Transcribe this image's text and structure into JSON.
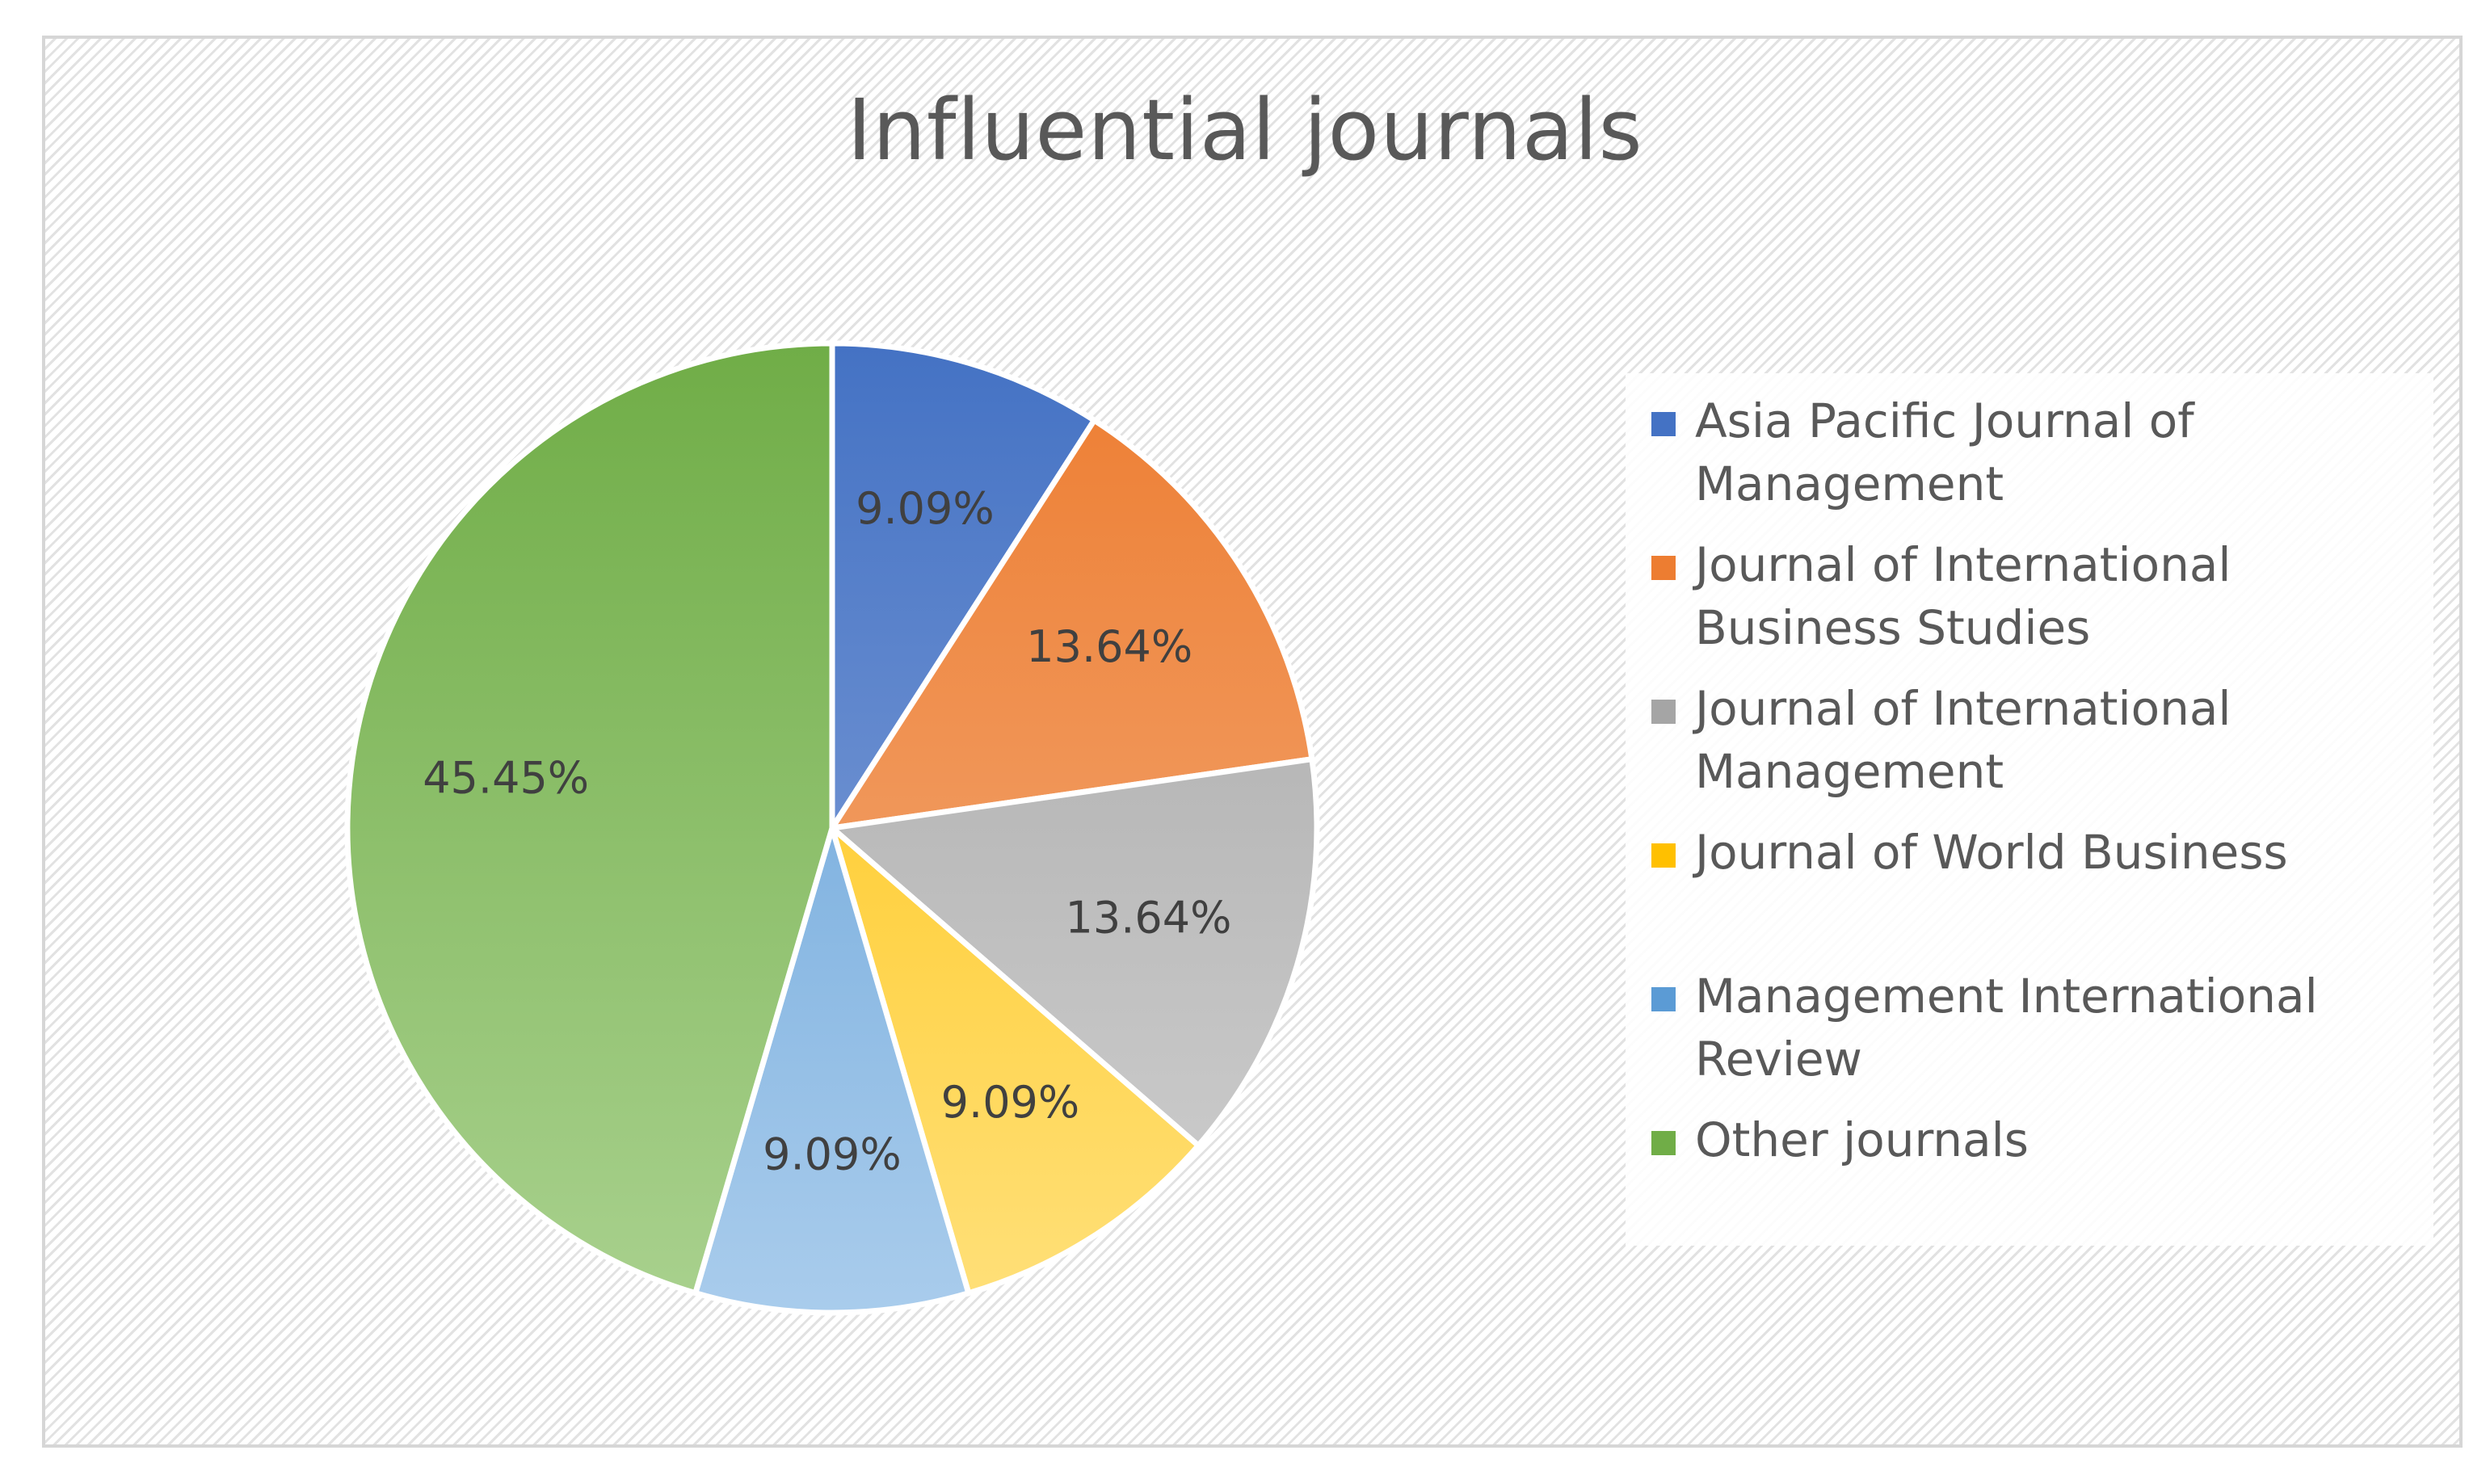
{
  "chart_data": {
    "type": "pie",
    "title": "Influential journals",
    "legend_position": "right",
    "slices": [
      {
        "name": "Asia Pacific Journal of Management",
        "value": 9.09,
        "label": "9.09%",
        "color": "#4472C4",
        "color_light": "#8FAADC"
      },
      {
        "name": "Journal of International Business Studies",
        "value": 13.64,
        "label": "13.64%",
        "color": "#ED7D31",
        "color_light": "#F4B183"
      },
      {
        "name": "Journal of International Management",
        "value": 13.64,
        "label": "13.64%",
        "color": "#A5A5A5",
        "color_light": "#D0D0D0"
      },
      {
        "name": "Journal of World Business",
        "value": 9.09,
        "label": "9.09%",
        "color": "#FFC000",
        "color_light": "#FFE07A"
      },
      {
        "name": "Management International Review",
        "value": 9.09,
        "label": "9.09%",
        "color": "#5B9BD5",
        "color_light": "#A9CCEC"
      },
      {
        "name": "Other journals",
        "value": 45.45,
        "label": "45.45%",
        "color": "#70AD47",
        "color_light": "#A9D18E"
      }
    ]
  },
  "legend": {
    "items": [
      {
        "label": "Asia Pacific Journal of Management"
      },
      {
        "label": "Journal of International Business Studies"
      },
      {
        "label": "Journal of International Management"
      },
      {
        "label": "Journal of World Business"
      },
      {
        "label": "Management International Review"
      },
      {
        "label": "Other journals"
      }
    ]
  }
}
